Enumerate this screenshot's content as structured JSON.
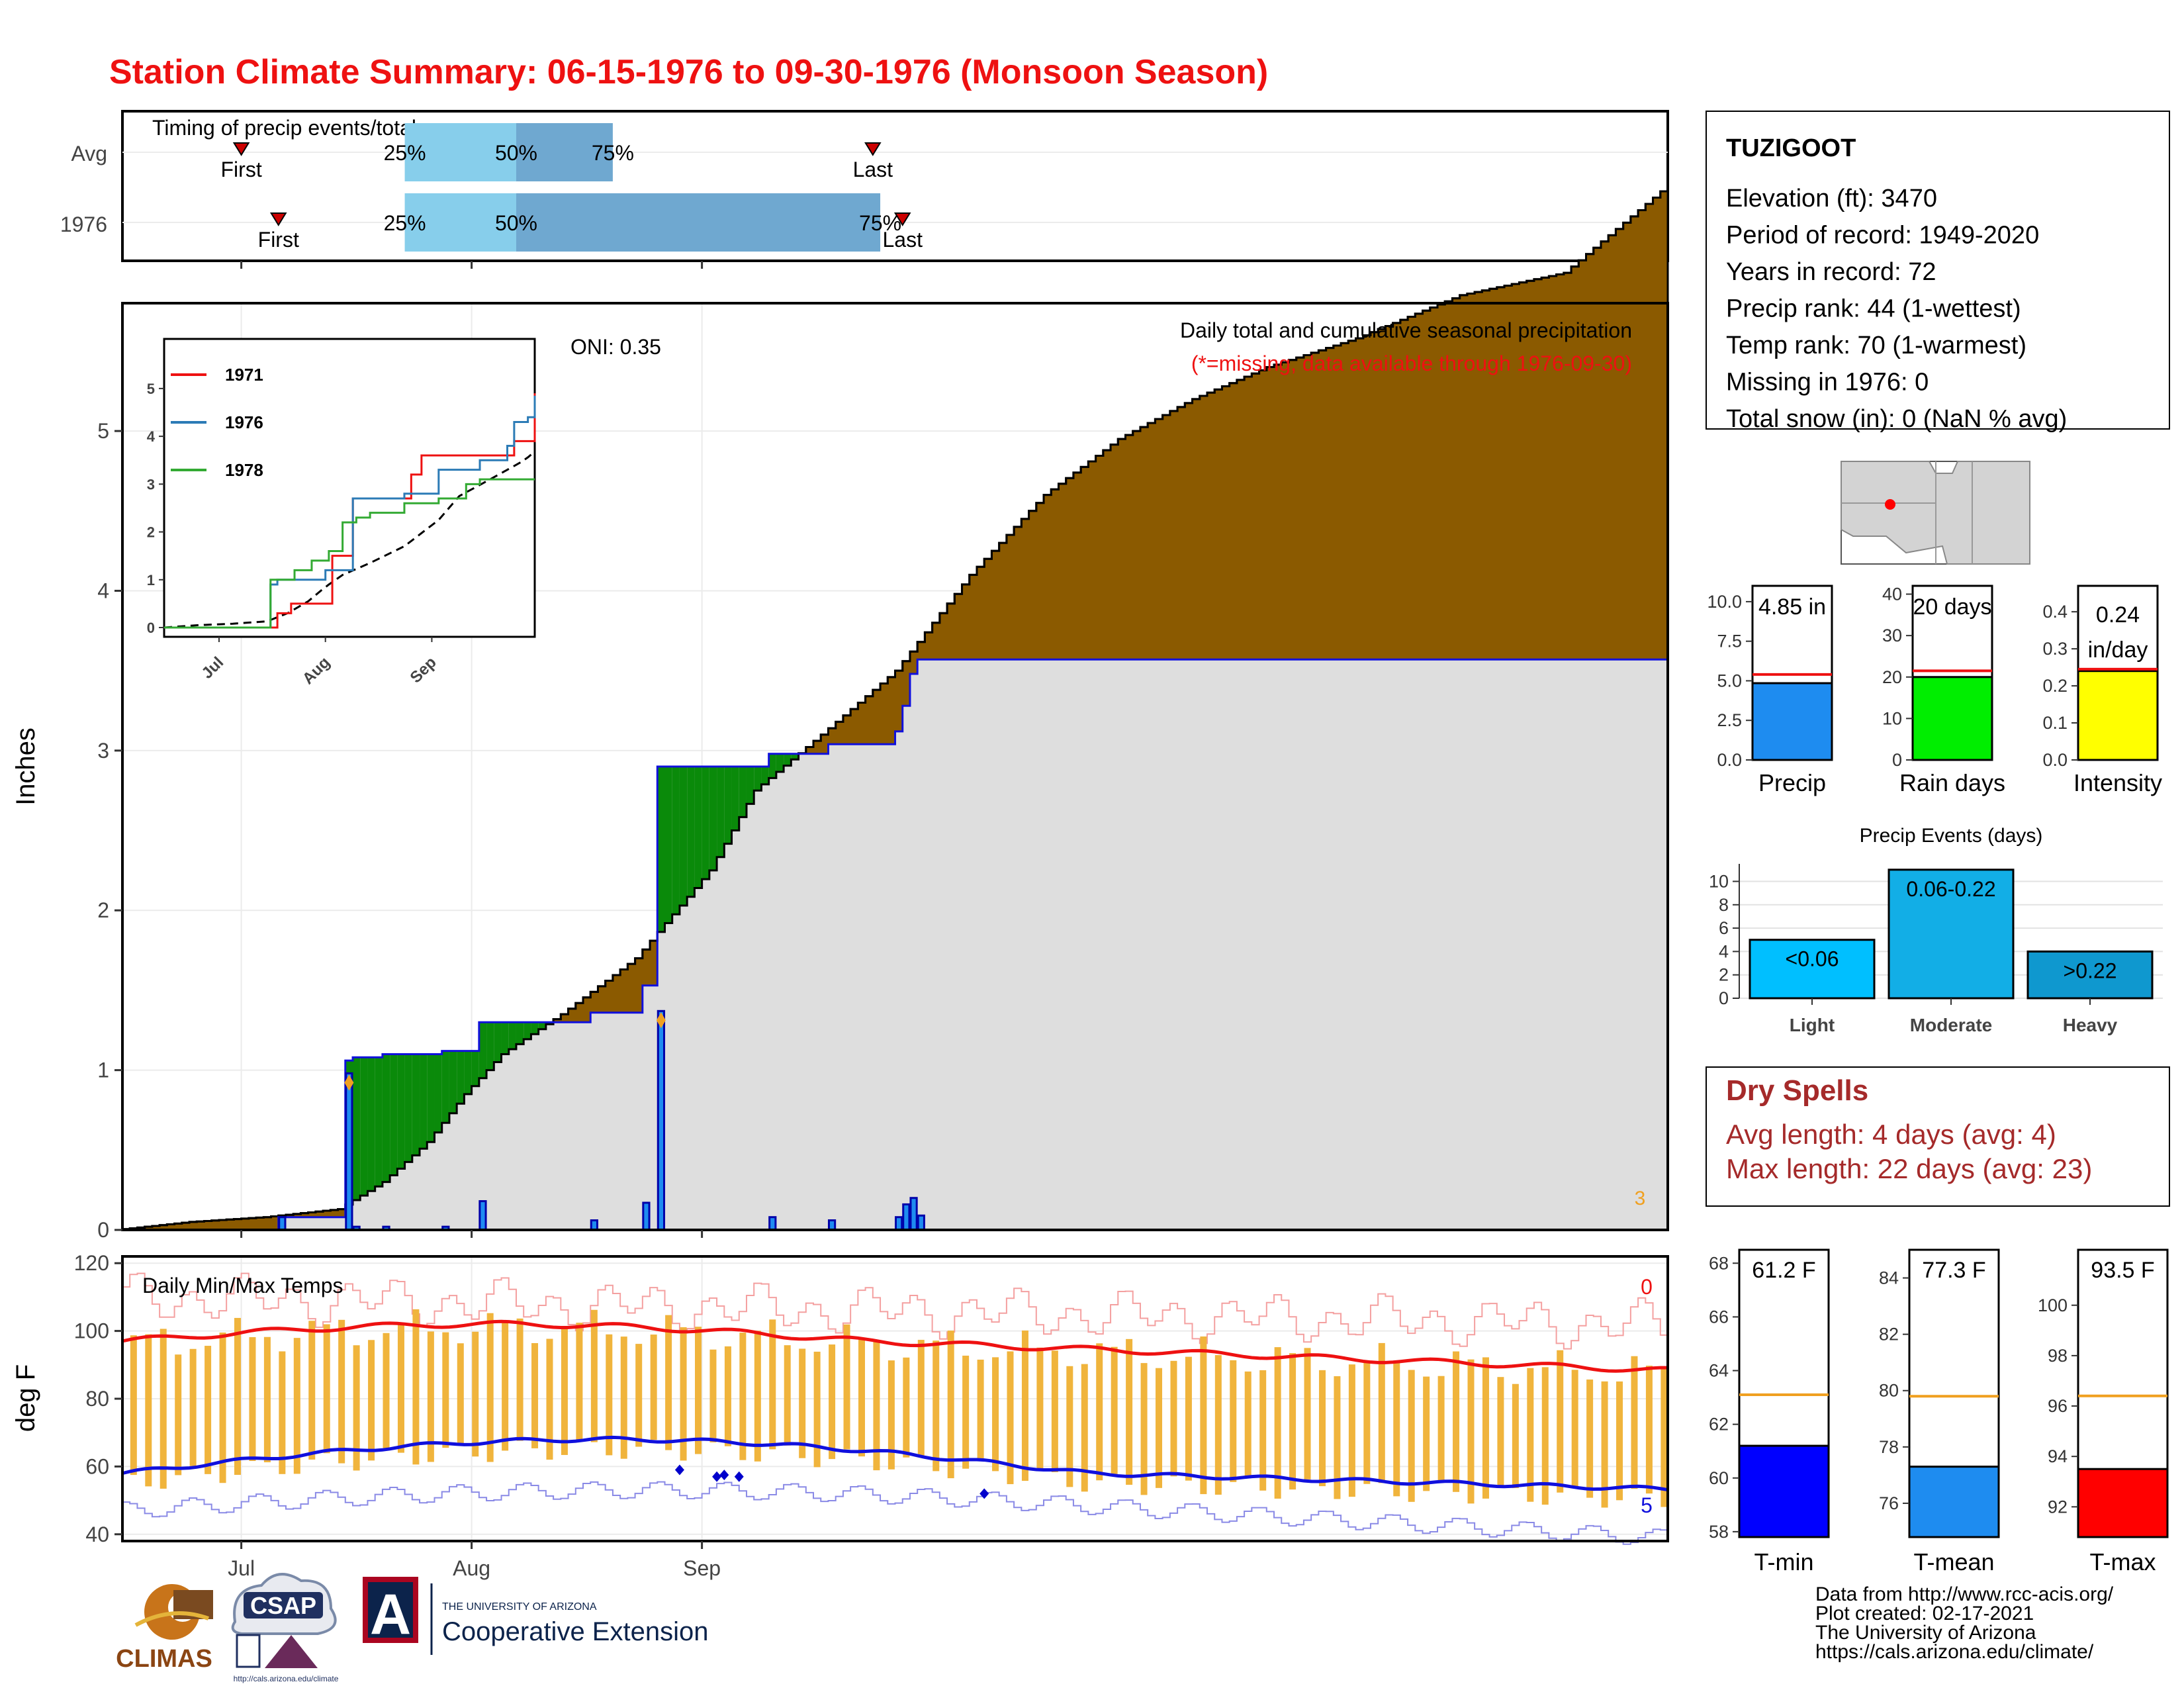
{
  "title": "Station Climate Summary: 06-15-1976 to 09-30-1976 (Monsoon Season)",
  "colors": {
    "title": "#ee1111",
    "precip_fill": "#8b5a00",
    "obs_fill": "#dedede",
    "obs_line": "#1010dd",
    "bar": "#1e8cf0",
    "early": "#0a8a0a",
    "tmax": "#ee1111",
    "tmin": "#1010dd",
    "trange": "#f0b43c",
    "light_blue": "#87ceeb",
    "mid_blue": "#6fa8d0"
  },
  "timing": {
    "title": "Timing of precip events/totals",
    "rows": [
      {
        "label": "Avg",
        "first_day": "First",
        "last_day": "Last",
        "p25": "25%",
        "p50": "50%",
        "p75": "75%",
        "first": "2024-07-01",
        "last": "2024-09-24",
        "q25": "2024-07-23",
        "q50": "2024-08-07",
        "q75": "2024-08-20"
      },
      {
        "label": "1976",
        "first_day": "First",
        "last_day": "Last",
        "p25": "25%",
        "p50": "50%",
        "p75": "75%",
        "first": "2024-07-06",
        "last": "2024-09-28",
        "q25": "2024-07-23",
        "q50": "2024-08-07",
        "q75": "2024-09-25"
      }
    ]
  },
  "precip_panel": {
    "oni": "ONI: 0.35",
    "caption": "Daily total and cumulative seasonal precipitation",
    "missing_note": "(*=missing, data available through 1976-09-30)",
    "missing_count": "3",
    "ylabel": "Inches",
    "yticks": [
      "0",
      "1",
      "2",
      "3",
      "4",
      "5"
    ],
    "xticks": [
      "Jul",
      "Aug",
      "Sep"
    ]
  },
  "inset": {
    "legend": [
      {
        "name": "1971",
        "color": "#ee1111"
      },
      {
        "name": "1976",
        "color": "#2c7bb6"
      },
      {
        "name": "1978",
        "color": "#33aa33"
      }
    ],
    "yticks": [
      "0",
      "1",
      "2",
      "3",
      "4",
      "5"
    ],
    "xticks": [
      "Jul",
      "Aug",
      "Sep"
    ]
  },
  "temp_panel": {
    "title": "Daily Min/Max Temps",
    "ylabel": "deg F",
    "yticks": [
      "40",
      "60",
      "80",
      "100",
      "120"
    ],
    "xticks": [
      "Jul",
      "Aug",
      "Sep"
    ],
    "max_count": "0",
    "min_count": "5"
  },
  "station": {
    "name": "TUZIGOOT",
    "lines": [
      "Elevation (ft): 3470",
      "Period of record: 1949-2020",
      "Years in record: 72",
      "Precip rank: 44 (1-wettest)",
      "Temp rank: 70 (1-warmest)",
      "Missing in 1976: 0",
      "Total snow (in): 0 (NaN % avg)"
    ]
  },
  "mini_bars": [
    {
      "label": "Precip",
      "value_text": "4.85 in",
      "value": 4.85,
      "avg": 5.4,
      "max": 11,
      "yticks": [
        "0.0",
        "2.5",
        "5.0",
        "7.5",
        "10.0"
      ],
      "tickvals": [
        0,
        2.5,
        5,
        7.5,
        10
      ],
      "color": "#1e8cf0"
    },
    {
      "label": "Rain days",
      "value_text": "20 days",
      "value": 20,
      "avg": 21.5,
      "max": 42,
      "yticks": [
        "0",
        "10",
        "20",
        "30",
        "40"
      ],
      "tickvals": [
        0,
        10,
        20,
        30,
        40
      ],
      "color": "#00ee00"
    },
    {
      "label": "Intensity",
      "value_text": "0.24",
      "value_text2": "in/day",
      "value": 0.24,
      "avg": 0.245,
      "max": 0.47,
      "yticks": [
        "0.0",
        "0.1",
        "0.2",
        "0.3",
        "0.4"
      ],
      "tickvals": [
        0,
        0.1,
        0.2,
        0.3,
        0.4
      ],
      "color": "#ffff00"
    }
  ],
  "events": {
    "title": "Precip Events (days)",
    "yticks": [
      "0",
      "2",
      "4",
      "6",
      "8",
      "10"
    ],
    "bars": [
      {
        "label": "Light",
        "value_text": "<0.06",
        "value": 5,
        "color": "#00bfff"
      },
      {
        "label": "Moderate",
        "value_text": "0.06-0.22",
        "value": 11,
        "color": "#12aee6"
      },
      {
        "label": "Heavy",
        "value_text": ">0.22",
        "value": 4,
        "color": "#0f98cf"
      }
    ]
  },
  "dry_spells": {
    "title": "Dry Spells",
    "lines": [
      "Avg length: 4 days (avg: 4)",
      "Max length: 22 days (avg: 23)"
    ]
  },
  "temp_bars": [
    {
      "label": "T-min",
      "value_text": "61.2 F",
      "value": 61.2,
      "avg": 63.1,
      "min": 57.8,
      "max": 68.5,
      "yticks": [
        "58",
        "60",
        "62",
        "64",
        "66",
        "68"
      ],
      "tickvals": [
        58,
        60,
        62,
        64,
        66,
        68
      ],
      "color": "#0000ff"
    },
    {
      "label": "T-mean",
      "value_text": "77.3 F",
      "value": 77.3,
      "avg": 79.8,
      "min": 74.8,
      "max": 85.0,
      "yticks": [
        "76",
        "78",
        "80",
        "82",
        "84"
      ],
      "tickvals": [
        76,
        78,
        80,
        82,
        84
      ],
      "color": "#1e8cf0"
    },
    {
      "label": "T-max",
      "value_text": "93.5 F",
      "value": 93.5,
      "avg": 96.4,
      "min": 90.8,
      "max": 102.2,
      "yticks": [
        "92",
        "94",
        "96",
        "98",
        "100"
      ],
      "tickvals": [
        92,
        94,
        96,
        98,
        100
      ],
      "color": "#ff0000"
    }
  ],
  "footer": {
    "lines": [
      "Data from http://www.rcc-acis.org/",
      "Plot created: 02-17-2021",
      "The University of Arizona",
      "https://cals.arizona.edu/climate/"
    ],
    "climas": "CLIMAS",
    "csap": "CSAP",
    "csap_url": "http://cals.arizona.edu/climate",
    "ua_small": "THE UNIVERSITY OF ARIZONA",
    "ua_big": "Cooperative Extension",
    "ua_letter": "A"
  },
  "chart_data": [
    {
      "type": "area",
      "title": "Daily total and cumulative seasonal precipitation",
      "ylabel": "Inches",
      "ylim": [
        0,
        5.8
      ],
      "x_start": "1976-06-15",
      "x_end": "1976-09-30",
      "normal_cumulative_points": [
        [
          0,
          0
        ],
        [
          10,
          0.05
        ],
        [
          20,
          0.08
        ],
        [
          30,
          0.13
        ],
        [
          36,
          0.3
        ],
        [
          42,
          0.55
        ],
        [
          47,
          0.85
        ],
        [
          52,
          1.1
        ],
        [
          60,
          1.35
        ],
        [
          70,
          1.7
        ],
        [
          80,
          2.25
        ],
        [
          86,
          2.75
        ],
        [
          95,
          3.1
        ],
        [
          105,
          3.5
        ],
        [
          115,
          4.1
        ],
        [
          125,
          4.6
        ],
        [
          135,
          4.95
        ],
        [
          145,
          5.2
        ],
        [
          155,
          5.4
        ],
        [
          167,
          5.58
        ],
        [
          181,
          5.85
        ],
        [
          195,
          5.99
        ],
        [
          208,
          6.5
        ]
      ],
      "daily_precip": [
        {
          "day": "1976-07-06",
          "in": 0.08
        },
        {
          "day": "1976-07-15",
          "in": 0.98
        },
        {
          "day": "1976-07-16",
          "in": 0.02
        },
        {
          "day": "1976-07-20",
          "in": 0.02
        },
        {
          "day": "1976-07-28",
          "in": 0.02
        },
        {
          "day": "1976-08-02",
          "in": 0.18
        },
        {
          "day": "1976-08-17",
          "in": 0.06
        },
        {
          "day": "1976-08-24",
          "in": 0.17
        },
        {
          "day": "1976-08-26",
          "in": 1.37
        },
        {
          "day": "1976-09-10",
          "in": 0.08
        },
        {
          "day": "1976-09-18",
          "in": 0.06
        },
        {
          "day": "1976-09-27",
          "in": 0.08
        },
        {
          "day": "1976-09-28",
          "in": 0.16
        },
        {
          "day": "1976-09-29",
          "in": 0.2
        },
        {
          "day": "1976-09-30",
          "in": 0.09
        }
      ],
      "observed_total": 4.85
    },
    {
      "type": "line",
      "title": "Daily Min/Max Temps",
      "ylabel": "deg F",
      "ylim": [
        38,
        122
      ],
      "series": [
        {
          "name": "Tmax normal",
          "start": 97,
          "peak": 102,
          "end": 89
        },
        {
          "name": "Tmin normal",
          "start": 58,
          "peak": 68,
          "end": 54
        }
      ]
    }
  ]
}
